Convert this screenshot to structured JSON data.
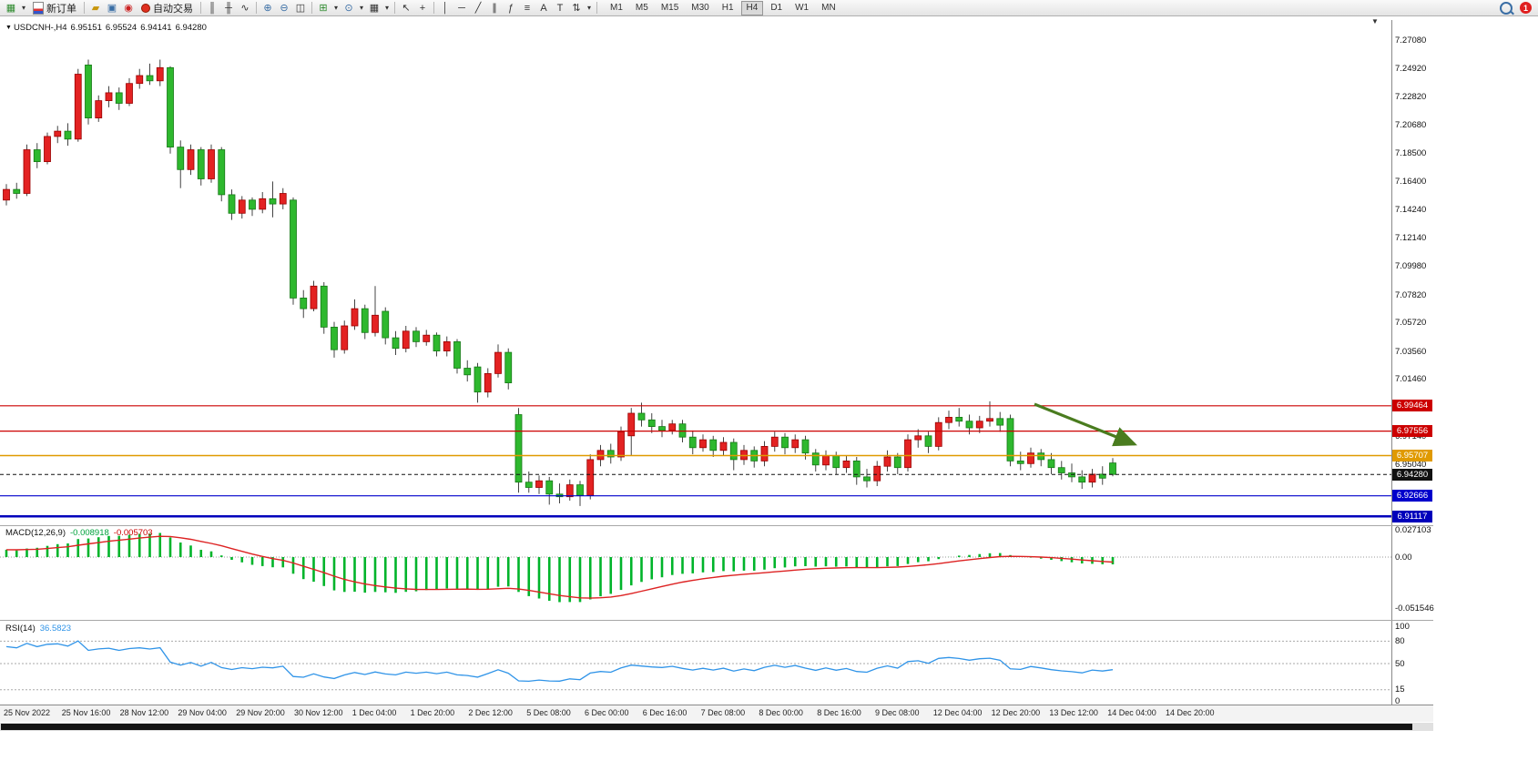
{
  "toolbar": {
    "new_order_label": "新订单",
    "auto_trading_label": "自动交易",
    "timeframes": [
      "M1",
      "M5",
      "M15",
      "M30",
      "H1",
      "H4",
      "D1",
      "W1",
      "MN"
    ],
    "active_timeframe": "H4",
    "notification_count": "1",
    "icons": {
      "new_chart": "▦",
      "dropdown": "▾",
      "metaeditor": "▰",
      "data_window": "▣",
      "sound": "◉",
      "bars_chart": "║",
      "candles_chart": "╫",
      "line_chart": "∿",
      "zoom_in": "⊕",
      "zoom_out": "⊖",
      "tile_windows": "◫",
      "indicators": "⊞",
      "periods": "⊙",
      "templates": "▦",
      "cursor": "↖",
      "crosshair": "+",
      "vertical_line": "│",
      "horizontal_line": "─",
      "trendline": "╱",
      "channel": "∥",
      "fibonacci": "ƒ",
      "fibo_lines": "≡",
      "text": "A",
      "label": "T",
      "arrows": "⇅"
    }
  },
  "chart": {
    "title": {
      "collapse_icon": "▼",
      "symbol_period": "USDCNH-,H4",
      "open": "6.95151",
      "high": "6.95524",
      "low": "6.94141",
      "close": "6.94280"
    },
    "shift_marker": "▼"
  },
  "chart_data": {
    "type": "candlestick",
    "symbol": "USDCNH-",
    "timeframe": "H4",
    "ohlc_readout": {
      "open": 6.95151,
      "high": 6.95524,
      "low": 6.94141,
      "close": 6.9428
    },
    "price_axis_range": [
      6.909,
      7.288
    ],
    "colors": {
      "up": "#e32222",
      "up_border": "#990000",
      "down": "#2eb82e",
      "down_border": "#157815",
      "wick": "#444444"
    },
    "price_axis_labels": [
      "7.27080",
      "7.24920",
      "7.22820",
      "7.20680",
      "7.18500",
      "7.16400",
      "7.14240",
      "7.12140",
      "7.09980",
      "7.07820",
      "7.05720",
      "7.03560",
      "7.01460",
      "6.97140",
      "6.95040"
    ],
    "levels": [
      {
        "label": "6.99464",
        "price": 6.99464,
        "color": "#cc0000",
        "width": 1.2,
        "dash": false
      },
      {
        "label": "6.97556",
        "price": 6.97556,
        "color": "#cc0000",
        "width": 1.2,
        "dash": false
      },
      {
        "label": "6.95707",
        "price": 6.95707,
        "color": "#e09a00",
        "width": 1.5,
        "dash": false
      },
      {
        "label": "6.94280",
        "price": 6.9428,
        "color": "#111111",
        "width": 1.0,
        "dash": true
      },
      {
        "label": "6.92666",
        "price": 6.92666,
        "color": "#0000cc",
        "width": 1.2,
        "dash": false
      },
      {
        "label": "6.91117",
        "price": 6.91117,
        "color": "#0000bb",
        "width": 2.5,
        "dash": false
      }
    ],
    "candles": [
      [
        7.15,
        7.162,
        7.146,
        7.158
      ],
      [
        7.158,
        7.163,
        7.151,
        7.155
      ],
      [
        7.155,
        7.192,
        7.153,
        7.188
      ],
      [
        7.188,
        7.193,
        7.174,
        7.179
      ],
      [
        7.179,
        7.201,
        7.177,
        7.198
      ],
      [
        7.198,
        7.206,
        7.193,
        7.202
      ],
      [
        7.202,
        7.208,
        7.191,
        7.196
      ],
      [
        7.196,
        7.249,
        7.194,
        7.245
      ],
      [
        7.252,
        7.256,
        7.207,
        7.212
      ],
      [
        7.212,
        7.229,
        7.209,
        7.225
      ],
      [
        7.225,
        7.236,
        7.22,
        7.231
      ],
      [
        7.231,
        7.235,
        7.218,
        7.223
      ],
      [
        7.223,
        7.242,
        7.221,
        7.238
      ],
      [
        7.238,
        7.249,
        7.234,
        7.244
      ],
      [
        7.244,
        7.253,
        7.237,
        7.24
      ],
      [
        7.24,
        7.256,
        7.236,
        7.25
      ],
      [
        7.25,
        7.251,
        7.185,
        7.19
      ],
      [
        7.19,
        7.195,
        7.159,
        7.173
      ],
      [
        7.173,
        7.192,
        7.169,
        7.188
      ],
      [
        7.188,
        7.19,
        7.161,
        7.166
      ],
      [
        7.166,
        7.192,
        7.163,
        7.188
      ],
      [
        7.188,
        7.19,
        7.149,
        7.154
      ],
      [
        7.154,
        7.158,
        7.135,
        7.14
      ],
      [
        7.14,
        7.153,
        7.136,
        7.15
      ],
      [
        7.15,
        7.152,
        7.138,
        7.143
      ],
      [
        7.143,
        7.156,
        7.14,
        7.151
      ],
      [
        7.151,
        7.164,
        7.137,
        7.147
      ],
      [
        7.147,
        7.159,
        7.143,
        7.155
      ],
      [
        7.15,
        7.152,
        7.071,
        7.076
      ],
      [
        7.076,
        7.082,
        7.061,
        7.068
      ],
      [
        7.068,
        7.089,
        7.066,
        7.085
      ],
      [
        7.085,
        7.088,
        7.049,
        7.054
      ],
      [
        7.054,
        7.058,
        7.031,
        7.037
      ],
      [
        7.037,
        7.059,
        7.034,
        7.055
      ],
      [
        7.055,
        7.075,
        7.052,
        7.068
      ],
      [
        7.068,
        7.071,
        7.045,
        7.05
      ],
      [
        7.05,
        7.085,
        7.047,
        7.063
      ],
      [
        7.066,
        7.069,
        7.041,
        7.046
      ],
      [
        7.046,
        7.051,
        7.033,
        7.038
      ],
      [
        7.038,
        7.055,
        7.035,
        7.051
      ],
      [
        7.051,
        7.054,
        7.039,
        7.043
      ],
      [
        7.043,
        7.052,
        7.04,
        7.048
      ],
      [
        7.048,
        7.05,
        7.032,
        7.036
      ],
      [
        7.036,
        7.047,
        7.032,
        7.043
      ],
      [
        7.043,
        7.045,
        7.019,
        7.023
      ],
      [
        7.023,
        7.029,
        7.013,
        7.018
      ],
      [
        7.024,
        7.027,
        6.997,
        7.005
      ],
      [
        7.005,
        7.023,
        7.001,
        7.019
      ],
      [
        7.019,
        7.041,
        7.016,
        7.035
      ],
      [
        7.035,
        7.038,
        7.007,
        7.012
      ],
      [
        6.988,
        6.993,
        6.929,
        6.937
      ],
      [
        6.937,
        6.945,
        6.929,
        6.933
      ],
      [
        6.933,
        6.942,
        6.928,
        6.938
      ],
      [
        6.938,
        6.941,
        6.92,
        6.928
      ],
      [
        6.928,
        6.936,
        6.921,
        6.926
      ],
      [
        6.926,
        6.939,
        6.923,
        6.935
      ],
      [
        6.935,
        6.938,
        6.919,
        6.927
      ],
      [
        6.927,
        6.958,
        6.924,
        6.954
      ],
      [
        6.954,
        6.965,
        6.949,
        6.961
      ],
      [
        6.961,
        6.966,
        6.951,
        6.956
      ],
      [
        6.956,
        6.979,
        6.953,
        6.975
      ],
      [
        6.972,
        6.993,
        6.957,
        6.989
      ],
      [
        6.989,
        6.997,
        6.979,
        6.984
      ],
      [
        6.984,
        6.989,
        6.974,
        6.979
      ],
      [
        6.979,
        6.984,
        6.971,
        6.976
      ],
      [
        6.976,
        6.984,
        6.973,
        6.981
      ],
      [
        6.981,
        6.984,
        6.967,
        6.971
      ],
      [
        6.971,
        6.976,
        6.958,
        6.963
      ],
      [
        6.963,
        6.973,
        6.96,
        6.969
      ],
      [
        6.969,
        6.972,
        6.956,
        6.961
      ],
      [
        6.961,
        6.971,
        6.957,
        6.967
      ],
      [
        6.967,
        6.97,
        6.946,
        6.954
      ],
      [
        6.954,
        6.965,
        6.95,
        6.961
      ],
      [
        6.961,
        6.964,
        6.948,
        6.953
      ],
      [
        6.953,
        6.968,
        6.949,
        6.964
      ],
      [
        6.964,
        6.975,
        6.96,
        6.971
      ],
      [
        6.971,
        6.974,
        6.958,
        6.963
      ],
      [
        6.963,
        6.973,
        6.959,
        6.969
      ],
      [
        6.969,
        6.972,
        6.954,
        6.959
      ],
      [
        6.959,
        6.962,
        6.945,
        6.95
      ],
      [
        6.95,
        6.961,
        6.946,
        6.957
      ],
      [
        6.957,
        6.96,
        6.943,
        6.948
      ],
      [
        6.948,
        6.957,
        6.944,
        6.953
      ],
      [
        6.953,
        6.956,
        6.935,
        6.941
      ],
      [
        6.941,
        6.947,
        6.933,
        6.938
      ],
      [
        6.938,
        6.953,
        6.934,
        6.949
      ],
      [
        6.949,
        6.961,
        6.945,
        6.956
      ],
      [
        6.956,
        6.959,
        6.943,
        6.948
      ],
      [
        6.948,
        6.973,
        6.945,
        6.969
      ],
      [
        6.969,
        6.977,
        6.963,
        6.972
      ],
      [
        6.972,
        6.975,
        6.959,
        6.964
      ],
      [
        6.964,
        6.986,
        6.961,
        6.982
      ],
      [
        6.982,
        6.991,
        6.977,
        6.986
      ],
      [
        6.986,
        6.993,
        6.979,
        6.983
      ],
      [
        6.983,
        6.988,
        6.973,
        6.978
      ],
      [
        6.978,
        6.987,
        6.974,
        6.983
      ],
      [
        6.983,
        6.998,
        6.979,
        6.985
      ],
      [
        6.985,
        6.99,
        6.975,
        6.98
      ],
      [
        6.985,
        6.988,
        6.949,
        6.953
      ],
      [
        6.953,
        6.96,
        6.946,
        6.951
      ],
      [
        6.951,
        6.963,
        6.948,
        6.959
      ],
      [
        6.959,
        6.962,
        6.949,
        6.954
      ],
      [
        6.954,
        6.959,
        6.943,
        6.948
      ],
      [
        6.948,
        6.953,
        6.939,
        6.944
      ],
      [
        6.944,
        6.951,
        6.937,
        6.941
      ],
      [
        6.941,
        6.946,
        6.932,
        6.937
      ],
      [
        6.937,
        6.947,
        6.933,
        6.943
      ],
      [
        6.943,
        6.949,
        6.935,
        6.94
      ],
      [
        6.9515,
        6.9552,
        6.9414,
        6.9428
      ]
    ],
    "time_labels": [
      "25 Nov 2022",
      "25 Nov 16:00",
      "28 Nov 12:00",
      "29 Nov 04:00",
      "29 Nov 20:00",
      "30 Nov 12:00",
      "1 Dec 04:00",
      "1 Dec 20:00",
      "2 Dec 12:00",
      "5 Dec 08:00",
      "6 Dec 00:00",
      "6 Dec 16:00",
      "7 Dec 08:00",
      "8 Dec 00:00",
      "8 Dec 16:00",
      "9 Dec 08:00",
      "12 Dec 04:00",
      "12 Dec 20:00",
      "13 Dec 12:00",
      "14 Dec 04:00",
      "14 Dec 20:00"
    ],
    "indicators": {
      "macd": {
        "label": "MACD(12,26,9)",
        "value_main": "-0.008918",
        "value_signal": "-0.005703",
        "axis": [
          "0.027103",
          "0.00",
          "-0.051546"
        ],
        "histogram_color": "#00b42a",
        "signal_color": "#dd2222"
      },
      "rsi": {
        "label": "RSI(14)",
        "value": "36.5823",
        "axis": [
          "100",
          "80",
          "50",
          "15",
          "0"
        ],
        "level_lines": [
          80,
          50,
          15
        ],
        "line_color": "#3094e8"
      }
    },
    "annotation_arrow": {
      "from": [
        1136,
        426
      ],
      "to": [
        1246,
        470
      ],
      "color": "#4a7c1f"
    }
  }
}
